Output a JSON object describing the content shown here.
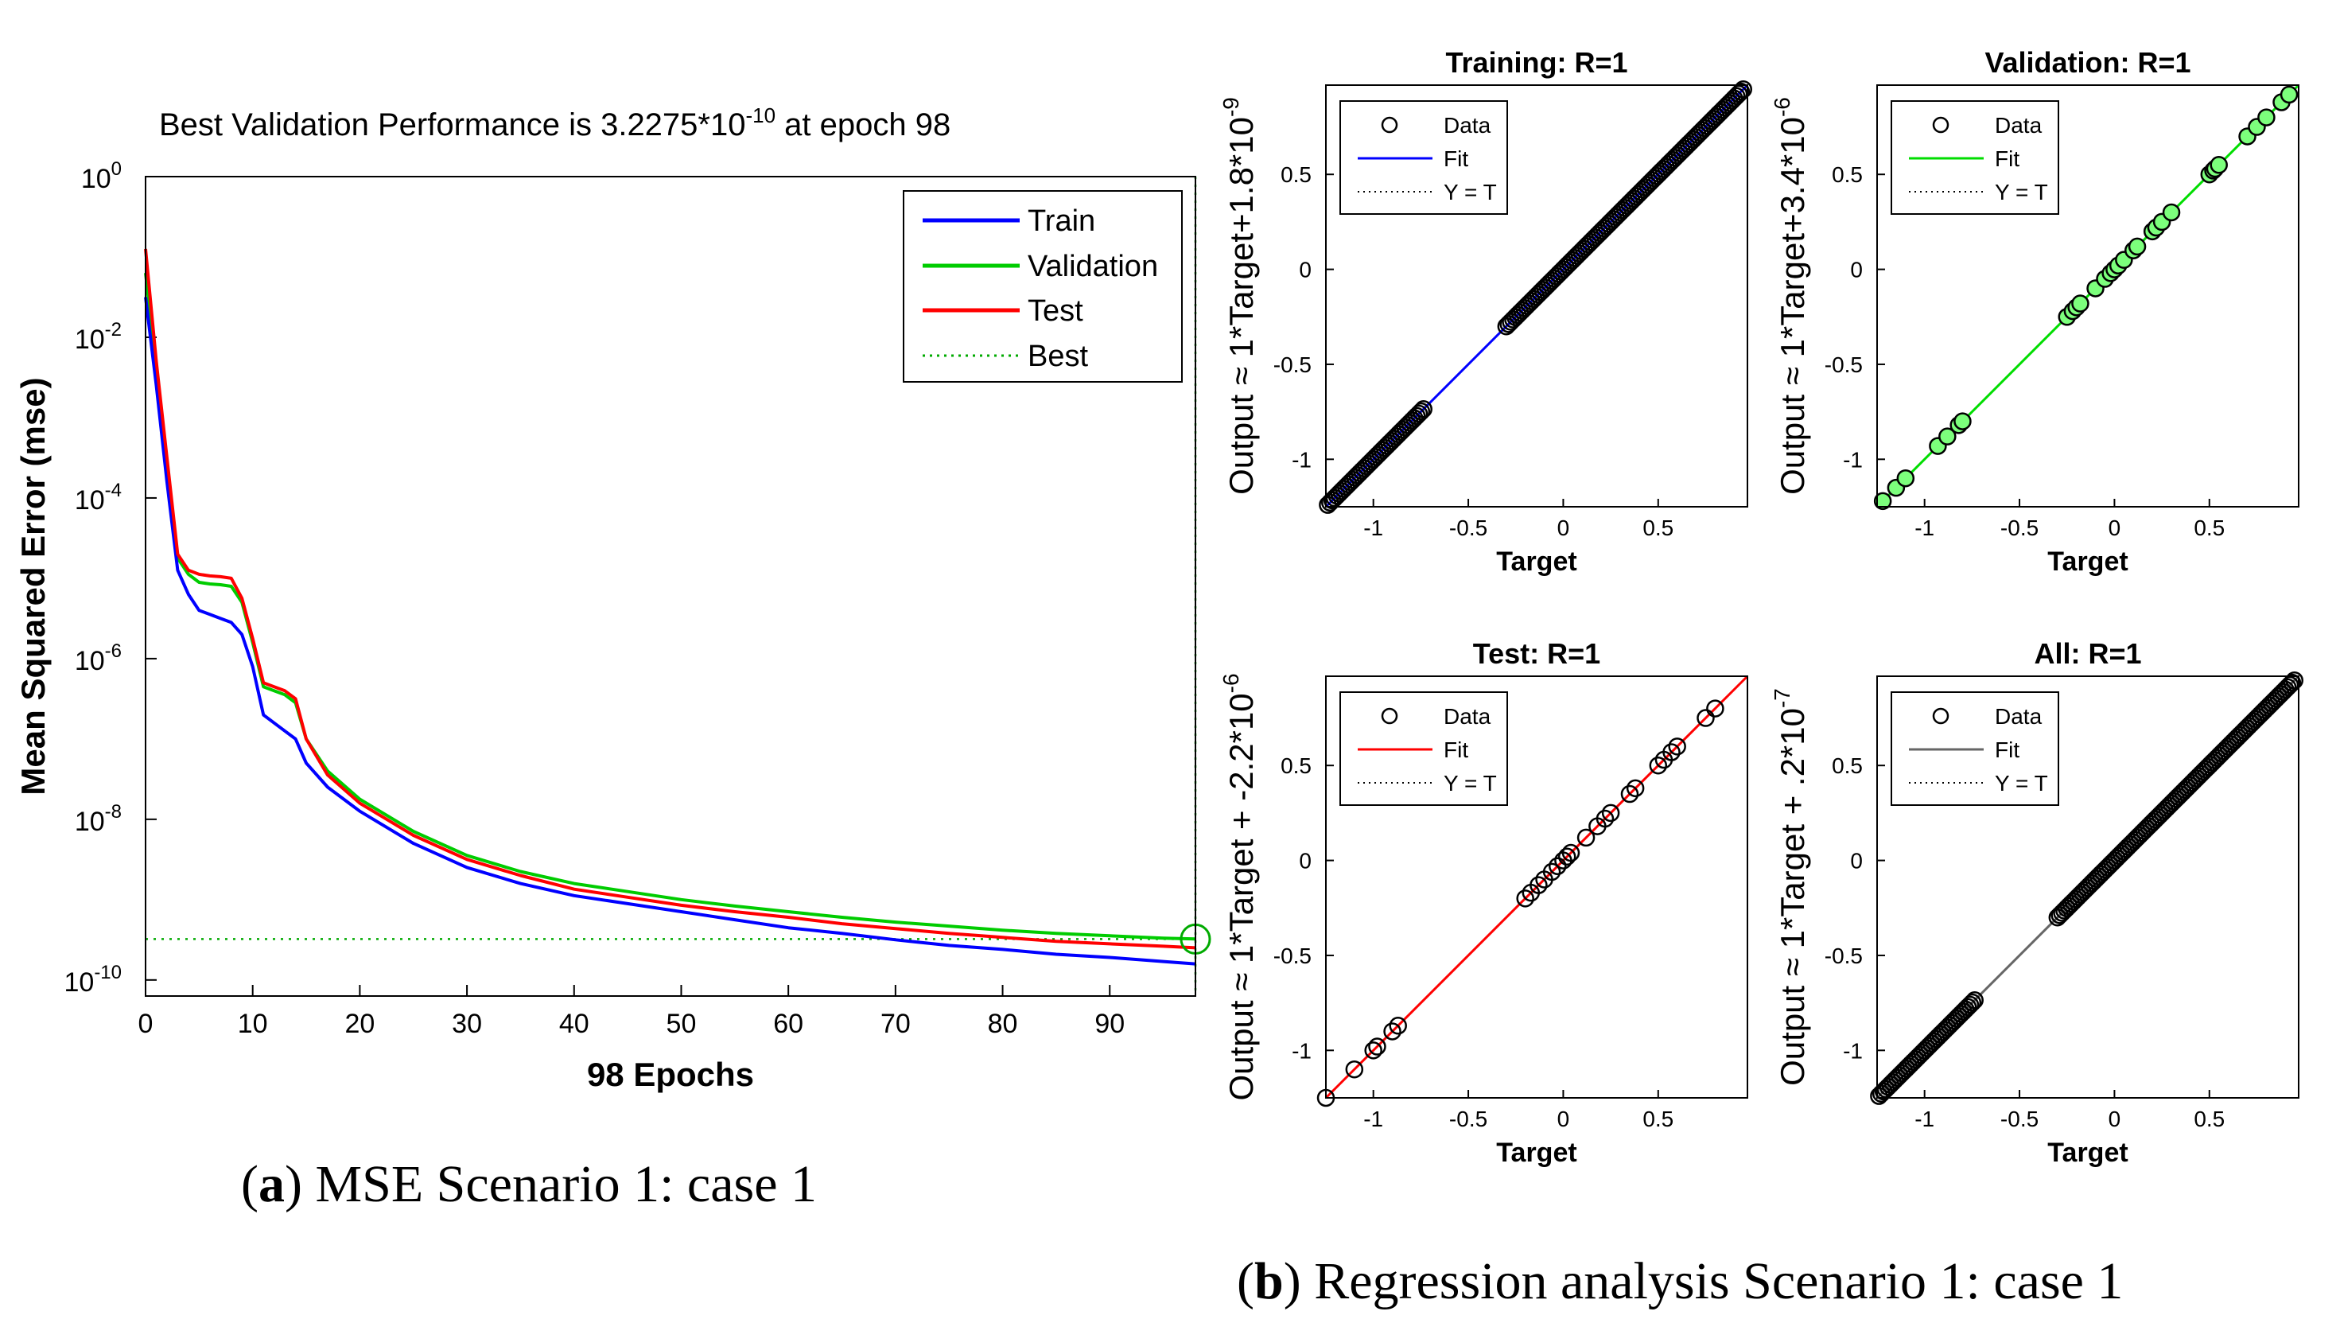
{
  "captions": {
    "a_tag": "a",
    "a_text": "MSE Scenario 1: case 1",
    "b_tag": "b",
    "b_text": "Regression analysis Scenario 1: case 1"
  },
  "colors": {
    "train": "#0000ff",
    "validation": "#00cc00",
    "test": "#ff0000",
    "best": "#00aa00",
    "all_fit": "#666666",
    "val_marker_fill": "#7cff7c"
  },
  "chart_data": [
    {
      "id": "mse",
      "type": "line",
      "title_prefix": "Best Validation Performance is 3.2275*10",
      "title_exp": "-10",
      "title_suffix": " at epoch 98",
      "xlabel": "98 Epochs",
      "ylabel": "Mean Squared Error  (mse)",
      "xlim": [
        0,
        98
      ],
      "ylim_log10": [
        -10.2,
        0
      ],
      "yscale": "log",
      "xticks": [
        "0",
        "10",
        "20",
        "30",
        "40",
        "50",
        "60",
        "70",
        "80",
        "90"
      ],
      "yticks": [
        {
          "base": "10",
          "exp": "0"
        },
        {
          "base": "10",
          "exp": "-2"
        },
        {
          "base": "10",
          "exp": "-4"
        },
        {
          "base": "10",
          "exp": "-6"
        },
        {
          "base": "10",
          "exp": "-8"
        },
        {
          "base": "10",
          "exp": "-10"
        }
      ],
      "legend": [
        "Train",
        "Validation",
        "Test",
        "Best"
      ],
      "best_epoch": 98,
      "best_value": 3.2275e-10,
      "series": [
        {
          "name": "Train",
          "x": [
            0,
            1,
            2,
            3,
            4,
            5,
            6,
            7,
            8,
            9,
            10,
            11,
            12,
            13,
            14,
            15,
            17,
            20,
            25,
            30,
            35,
            40,
            45,
            50,
            55,
            60,
            65,
            70,
            75,
            80,
            85,
            90,
            95,
            98
          ],
          "log10": [
            -1.5,
            -2.6,
            -3.8,
            -4.9,
            -5.2,
            -5.4,
            -5.45,
            -5.5,
            -5.55,
            -5.7,
            -6.1,
            -6.7,
            -6.8,
            -6.9,
            -7.0,
            -7.3,
            -7.6,
            -7.9,
            -8.3,
            -8.6,
            -8.8,
            -8.95,
            -9.05,
            -9.15,
            -9.25,
            -9.35,
            -9.42,
            -9.5,
            -9.57,
            -9.62,
            -9.68,
            -9.72,
            -9.77,
            -9.8
          ]
        },
        {
          "name": "Validation",
          "x": [
            0,
            1,
            2,
            3,
            4,
            5,
            6,
            7,
            8,
            9,
            10,
            11,
            12,
            13,
            14,
            15,
            17,
            20,
            25,
            30,
            35,
            40,
            45,
            50,
            55,
            60,
            65,
            70,
            75,
            80,
            85,
            90,
            95,
            98
          ],
          "log10": [
            -1.2,
            -2.4,
            -3.6,
            -4.75,
            -4.95,
            -5.05,
            -5.07,
            -5.08,
            -5.1,
            -5.3,
            -5.8,
            -6.35,
            -6.4,
            -6.45,
            -6.55,
            -7.0,
            -7.4,
            -7.75,
            -8.15,
            -8.45,
            -8.65,
            -8.8,
            -8.9,
            -9.0,
            -9.08,
            -9.15,
            -9.22,
            -9.28,
            -9.33,
            -9.38,
            -9.42,
            -9.45,
            -9.48,
            -9.49
          ]
        },
        {
          "name": "Test",
          "x": [
            0,
            1,
            2,
            3,
            4,
            5,
            6,
            7,
            8,
            9,
            10,
            11,
            12,
            13,
            14,
            15,
            17,
            20,
            25,
            30,
            35,
            40,
            45,
            50,
            55,
            60,
            65,
            70,
            75,
            80,
            85,
            90,
            95,
            98
          ],
          "log10": [
            -0.9,
            -2.3,
            -3.5,
            -4.7,
            -4.9,
            -4.95,
            -4.97,
            -4.98,
            -5.0,
            -5.25,
            -5.75,
            -6.3,
            -6.35,
            -6.4,
            -6.5,
            -7.0,
            -7.45,
            -7.8,
            -8.2,
            -8.5,
            -8.7,
            -8.87,
            -8.97,
            -9.07,
            -9.15,
            -9.22,
            -9.3,
            -9.36,
            -9.42,
            -9.47,
            -9.52,
            -9.55,
            -9.58,
            -9.6
          ]
        }
      ]
    },
    {
      "id": "reg-training",
      "type": "scatter",
      "title": "Training: R=1",
      "xlabel": "Target",
      "ylabel": "Output ≈ 1*Target+1.8*10",
      "ylabel_exp": "-9",
      "lim": [
        -1.25,
        0.97
      ],
      "xticks": [
        "-1",
        "-0.5",
        "0",
        "0.5"
      ],
      "xtick_vals": [
        -1,
        -0.5,
        0,
        0.5
      ],
      "yticks": [
        "-1",
        "-0.5",
        "0",
        "0.5"
      ],
      "ytick_vals": [
        -1,
        -0.5,
        0,
        0.5
      ],
      "legend": [
        "Data",
        "Fit",
        "Y = T"
      ],
      "fit_color": "#0000ff",
      "marker_fill": "none",
      "dense_ranges": [
        [
          -1.24,
          -0.73
        ],
        [
          -0.3,
          0.96
        ]
      ],
      "points": []
    },
    {
      "id": "reg-validation",
      "type": "scatter",
      "title": "Validation: R=1",
      "xlabel": "Target",
      "ylabel": "Output ≈ 1*Target+3.4*10",
      "ylabel_exp": "-6",
      "lim": [
        -1.25,
        0.97
      ],
      "xticks": [
        "-1",
        "-0.5",
        "0",
        "0.5"
      ],
      "xtick_vals": [
        -1,
        -0.5,
        0,
        0.5
      ],
      "yticks": [
        "-1",
        "-0.5",
        "0",
        "0.5"
      ],
      "ytick_vals": [
        -1,
        -0.5,
        0,
        0.5
      ],
      "legend": [
        "Data",
        "Fit",
        "Y = T"
      ],
      "fit_color": "#00dd00",
      "marker_fill": "#7cff7c",
      "dense_ranges": [],
      "points": [
        -1.22,
        -1.15,
        -1.1,
        -0.93,
        -0.88,
        -0.82,
        -0.8,
        -0.25,
        -0.22,
        -0.2,
        -0.18,
        -0.1,
        -0.05,
        -0.02,
        0.0,
        0.02,
        0.05,
        0.1,
        0.12,
        0.2,
        0.22,
        0.25,
        0.3,
        0.5,
        0.52,
        0.53,
        0.55,
        0.7,
        0.75,
        0.8,
        0.88,
        0.92
      ]
    },
    {
      "id": "reg-test",
      "type": "scatter",
      "title": "Test: R=1",
      "xlabel": "Target",
      "ylabel": "Output ≈ 1*Target + -2.2*10",
      "ylabel_exp": "-6",
      "lim": [
        -1.25,
        0.97
      ],
      "xticks": [
        "-1",
        "-0.5",
        "0",
        "0.5"
      ],
      "xtick_vals": [
        -1,
        -0.5,
        0,
        0.5
      ],
      "yticks": [
        "-1",
        "-0.5",
        "0",
        "0.5"
      ],
      "ytick_vals": [
        -1,
        -0.5,
        0,
        0.5
      ],
      "legend": [
        "Data",
        "Fit",
        "Y = T"
      ],
      "fit_color": "#ff0000",
      "marker_fill": "none",
      "dense_ranges": [],
      "points": [
        -1.25,
        -1.1,
        -1.0,
        -0.98,
        -0.9,
        -0.87,
        -0.2,
        -0.17,
        -0.13,
        -0.1,
        -0.06,
        -0.03,
        0.0,
        0.02,
        0.04,
        0.12,
        0.18,
        0.22,
        0.25,
        0.35,
        0.38,
        0.5,
        0.53,
        0.57,
        0.6,
        0.75,
        0.8
      ]
    },
    {
      "id": "reg-all",
      "type": "scatter",
      "title": "All: R=1",
      "xlabel": "Target",
      "ylabel": "Output ≈ 1*Target + .2*10",
      "ylabel_exp": "-7",
      "lim": [
        -1.25,
        0.97
      ],
      "xticks": [
        "-1",
        "-0.5",
        "0",
        "0.5"
      ],
      "xtick_vals": [
        -1,
        -0.5,
        0,
        0.5
      ],
      "yticks": [
        "-1",
        "-0.5",
        "0",
        "0.5"
      ],
      "ytick_vals": [
        -1,
        -0.5,
        0,
        0.5
      ],
      "legend": [
        "Data",
        "Fit",
        "Y = T"
      ],
      "fit_color": "#666666",
      "marker_fill": "none",
      "dense_ranges": [
        [
          -1.24,
          -0.73
        ],
        [
          -0.3,
          0.96
        ]
      ],
      "points": []
    }
  ]
}
